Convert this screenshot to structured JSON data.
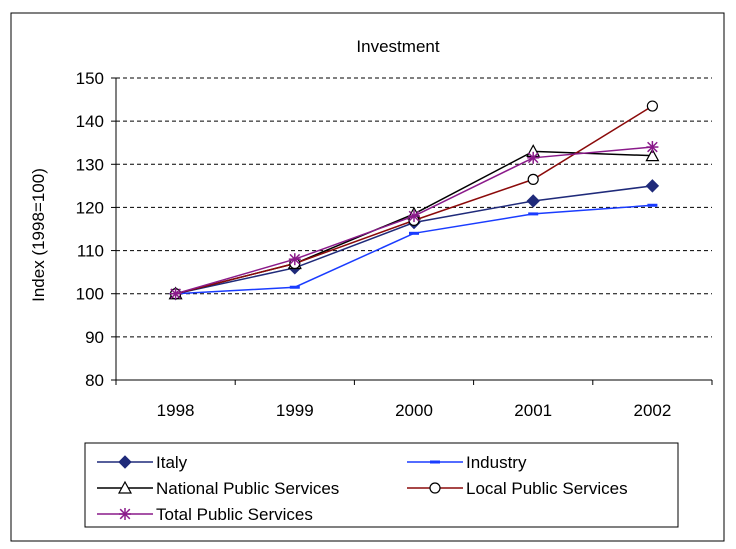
{
  "chart_data": {
    "type": "line",
    "title": "Investment",
    "ylabel": "Index (1998=100)",
    "xlabel": "",
    "categories": [
      "1998",
      "1999",
      "2000",
      "2001",
      "2002"
    ],
    "ylim": [
      80,
      150
    ],
    "yticks": [
      80,
      90,
      100,
      110,
      120,
      130,
      140,
      150
    ],
    "grid": true,
    "legend_position": "bottom",
    "series": [
      {
        "name": "Italy",
        "values": [
          100,
          106,
          116.5,
          121.5,
          125
        ],
        "color": "#1f2a7a",
        "marker": "diamond"
      },
      {
        "name": "Industry",
        "values": [
          100,
          101.5,
          114,
          118.5,
          120.5
        ],
        "color": "#1a3cff",
        "marker": "dash"
      },
      {
        "name": "National Public Services",
        "values": [
          100,
          107,
          118.5,
          133,
          132
        ],
        "color": "#000000",
        "marker": "triangle"
      },
      {
        "name": "Local Public Services",
        "values": [
          100,
          107,
          117,
          126.5,
          143.5
        ],
        "color": "#8b0a0a",
        "marker": "circle"
      },
      {
        "name": "Total Public Services",
        "values": [
          100,
          108,
          118,
          131.5,
          134
        ],
        "color": "#8a1a8a",
        "marker": "star"
      }
    ]
  }
}
